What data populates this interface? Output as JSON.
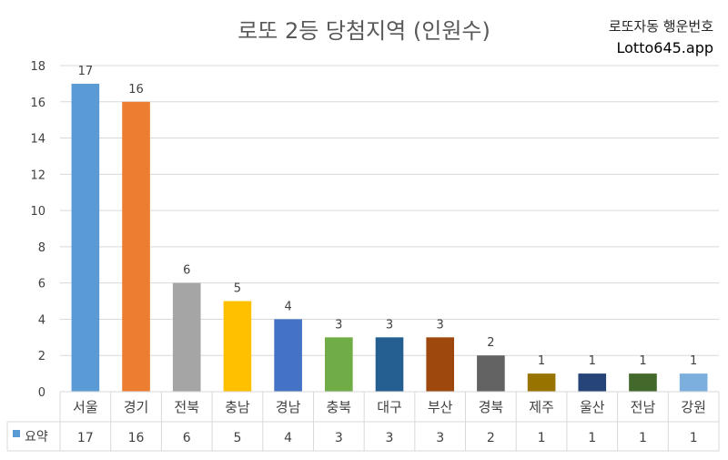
{
  "header": {
    "title": "로또 2등 당첨지역 (인원수)",
    "brand_name": "로또자동 행운번호",
    "brand_url": "Lotto645.app"
  },
  "chart_data": {
    "type": "bar",
    "title": "로또 2등 당첨지역 (인원수)",
    "categories": [
      "서울",
      "경기",
      "전북",
      "충남",
      "경남",
      "충북",
      "대구",
      "부산",
      "경북",
      "제주",
      "울산",
      "전남",
      "강원"
    ],
    "series": [
      {
        "name": "요약",
        "values": [
          17,
          16,
          6,
          5,
          4,
          3,
          3,
          3,
          2,
          1,
          1,
          1,
          1
        ]
      }
    ],
    "bar_colors": [
      "#5b9bd5",
      "#ed7d31",
      "#a5a5a5",
      "#ffc000",
      "#4472c4",
      "#70ad47",
      "#255e91",
      "#9e480e",
      "#636363",
      "#997300",
      "#264478",
      "#43682b",
      "#7cafdd"
    ],
    "ylim": [
      0,
      18
    ],
    "yticks": [
      0,
      2,
      4,
      6,
      8,
      10,
      12,
      14,
      16,
      18
    ],
    "grid": true,
    "legend_marker_color": "#5b9bd5",
    "show_data_table": true
  }
}
